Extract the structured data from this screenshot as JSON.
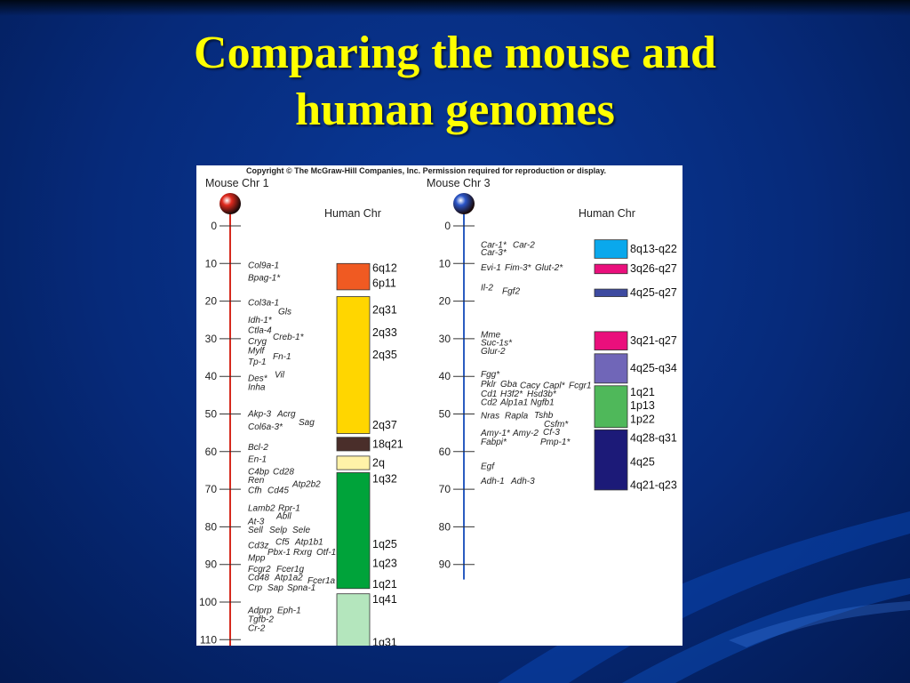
{
  "slide": {
    "title_line1": "Comparing the mouse and",
    "title_line2": "human genomes"
  },
  "figure": {
    "copyright": "Copyright © The McGraw-Hill Companies, Inc. Permission required for reproduction or display.",
    "human_chr_label": "Human Chr"
  },
  "chromosomes": [
    {
      "name": "Mouse Chr 1",
      "marker_color": "#e02a1e",
      "axis_color": "#d62a1e",
      "ticks": [
        0,
        10,
        20,
        30,
        40,
        50,
        60,
        70,
        80,
        90,
        100,
        110
      ],
      "genes": [
        {
          "text": "Col9a-1",
          "pos": 10.5,
          "dx": 0
        },
        {
          "text": "Bpag-1*",
          "pos": 13.8,
          "dx": 0
        },
        {
          "text": "Col3a-1",
          "pos": 20.5,
          "dx": 0
        },
        {
          "text": "Gls",
          "pos": 22.8,
          "dx": 34
        },
        {
          "text": "Idh-1*",
          "pos": 25.0,
          "dx": 0
        },
        {
          "text": "Ctla-4",
          "pos": 27.8,
          "dx": 0
        },
        {
          "text": "Creb-1*",
          "pos": 29.6,
          "dx": 28
        },
        {
          "text": "Cryg",
          "pos": 30.7,
          "dx": 0
        },
        {
          "text": "Mylf",
          "pos": 33.2,
          "dx": 0
        },
        {
          "text": "Fn-1",
          "pos": 34.7,
          "dx": 28
        },
        {
          "text": "Tp-1",
          "pos": 36.2,
          "dx": 0
        },
        {
          "text": "Vil",
          "pos": 39.6,
          "dx": 30
        },
        {
          "text": "Des*",
          "pos": 40.5,
          "dx": 0
        },
        {
          "text": "Inha",
          "pos": 42.9,
          "dx": 0
        },
        {
          "text": "Akp-3",
          "pos": 50.0,
          "dx": 0
        },
        {
          "text": "Acrg",
          "pos": 50.0,
          "dx": 33
        },
        {
          "text": "Sag",
          "pos": 52.2,
          "dx": 57
        },
        {
          "text": "Col6a-3*",
          "pos": 53.4,
          "dx": 0
        },
        {
          "text": "Bcl-2",
          "pos": 58.9,
          "dx": 0
        },
        {
          "text": "En-1",
          "pos": 62.0,
          "dx": 0
        },
        {
          "text": "C4bp",
          "pos": 65.4,
          "dx": 0
        },
        {
          "text": "Cd28",
          "pos": 65.4,
          "dx": 28
        },
        {
          "text": "Ren",
          "pos": 67.6,
          "dx": 0
        },
        {
          "text": "Atp2b2",
          "pos": 68.7,
          "dx": 50
        },
        {
          "text": "Cfh",
          "pos": 70.3,
          "dx": 0
        },
        {
          "text": "Cd45",
          "pos": 70.3,
          "dx": 22
        },
        {
          "text": "Lamb2",
          "pos": 75.0,
          "dx": 0
        },
        {
          "text": "Rpr-1",
          "pos": 75.0,
          "dx": 34
        },
        {
          "text": "Abll",
          "pos": 77.2,
          "dx": 32
        },
        {
          "text": "At-3",
          "pos": 78.6,
          "dx": 0
        },
        {
          "text": "Sell",
          "pos": 80.9,
          "dx": 0
        },
        {
          "text": "Selp",
          "pos": 80.9,
          "dx": 24
        },
        {
          "text": "Sele",
          "pos": 80.9,
          "dx": 50
        },
        {
          "text": "Cf5",
          "pos": 84.1,
          "dx": 31
        },
        {
          "text": "Atp1b1",
          "pos": 84.1,
          "dx": 53
        },
        {
          "text": "Cd3z",
          "pos": 85.0,
          "dx": 0
        },
        {
          "text": "Pbx-1",
          "pos": 86.8,
          "dx": 22
        },
        {
          "text": "Rxrg",
          "pos": 86.8,
          "dx": 51
        },
        {
          "text": "Otf-1",
          "pos": 86.8,
          "dx": 77
        },
        {
          "text": "Mpp",
          "pos": 88.3,
          "dx": 0
        },
        {
          "text": "Fcgr2",
          "pos": 91.3,
          "dx": 0
        },
        {
          "text": "Fcer1g",
          "pos": 91.3,
          "dx": 32
        },
        {
          "text": "Cd48",
          "pos": 93.5,
          "dx": 0
        },
        {
          "text": "Atp1a2",
          "pos": 93.5,
          "dx": 30
        },
        {
          "text": "Fcer1a",
          "pos": 94.3,
          "dx": 67
        },
        {
          "text": "Crp",
          "pos": 96.2,
          "dx": 0
        },
        {
          "text": "Sap",
          "pos": 96.2,
          "dx": 22
        },
        {
          "text": "Spna-1",
          "pos": 96.2,
          "dx": 44
        },
        {
          "text": "Adprp",
          "pos": 102.2,
          "dx": 0
        },
        {
          "text": "Eph-1",
          "pos": 102.2,
          "dx": 33
        },
        {
          "text": "Tgfb-2",
          "pos": 104.6,
          "dx": 0
        },
        {
          "text": "Cr-2",
          "pos": 107.0,
          "dx": 0
        }
      ],
      "segments": [
        {
          "start": 10.0,
          "end": 17.0,
          "color": "#f05a22",
          "labels": [
            {
              "text": "6q12",
              "pos": 11.2
            },
            {
              "text": "6p11",
              "pos": 15.2
            }
          ]
        },
        {
          "start": 18.8,
          "end": 55.2,
          "color": "#ffd600",
          "labels": [
            {
              "text": "2q31",
              "pos": 22.3
            },
            {
              "text": "2q33",
              "pos": 28.4
            },
            {
              "text": "2q35",
              "pos": 34.3
            },
            {
              "text": "2q37",
              "pos": 52.9
            }
          ]
        },
        {
          "start": 56.2,
          "end": 59.8,
          "color": "#4a2e2a",
          "labels": [
            {
              "text": "18q21",
              "pos": 58.0
            }
          ]
        },
        {
          "start": 61.2,
          "end": 64.8,
          "color": "#fff2a8",
          "labels": [
            {
              "text": "2q",
              "pos": 63.0
            }
          ]
        },
        {
          "start": 65.6,
          "end": 96.4,
          "color": "#00a33a",
          "labels": [
            {
              "text": "1q32",
              "pos": 67.3
            },
            {
              "text": "1q25",
              "pos": 84.6
            },
            {
              "text": "1q23",
              "pos": 89.7
            },
            {
              "text": "1q21",
              "pos": 95.3
            }
          ]
        },
        {
          "start": 97.8,
          "end": 112.5,
          "color": "#b4e6bd",
          "labels": [
            {
              "text": "1q41",
              "pos": 99.3
            },
            {
              "text": "1q31",
              "pos": 110.8
            }
          ]
        }
      ]
    },
    {
      "name": "Mouse Chr 3",
      "marker_color": "#2a55c8",
      "axis_color": "#2a5cc0",
      "ticks": [
        0,
        10,
        20,
        30,
        40,
        50,
        60,
        70,
        80,
        90
      ],
      "genes": [
        {
          "text": "Car-1*",
          "pos": 5.1,
          "dx": 0
        },
        {
          "text": "Car-2",
          "pos": 5.1,
          "dx": 36
        },
        {
          "text": "Car-3*",
          "pos": 7.1,
          "dx": 0
        },
        {
          "text": "Evi-1",
          "pos": 11.1,
          "dx": 0
        },
        {
          "text": "Fim-3*",
          "pos": 11.1,
          "dx": 27
        },
        {
          "text": "Glut-2*",
          "pos": 11.1,
          "dx": 61
        },
        {
          "text": "Il-2",
          "pos": 16.4,
          "dx": 0
        },
        {
          "text": "Fgf2",
          "pos": 17.4,
          "dx": 24
        },
        {
          "text": "Mme",
          "pos": 29.0,
          "dx": 0
        },
        {
          "text": "Suc-1s*",
          "pos": 31.1,
          "dx": 0
        },
        {
          "text": "Glur-2",
          "pos": 33.3,
          "dx": 0
        },
        {
          "text": "Fgg*",
          "pos": 39.5,
          "dx": 0
        },
        {
          "text": "Pklr",
          "pos": 42.1,
          "dx": 0
        },
        {
          "text": "Gba",
          "pos": 42.1,
          "dx": 22
        },
        {
          "text": "Cacy",
          "pos": 42.4,
          "dx": 44
        },
        {
          "text": "Capl*",
          "pos": 42.4,
          "dx": 70
        },
        {
          "text": "Fcgr1",
          "pos": 42.4,
          "dx": 99
        },
        {
          "text": "Cd1",
          "pos": 44.7,
          "dx": 0
        },
        {
          "text": "H3f2*",
          "pos": 44.7,
          "dx": 22
        },
        {
          "text": "Hsd3b*",
          "pos": 44.7,
          "dx": 52
        },
        {
          "text": "Cd2",
          "pos": 46.9,
          "dx": 0
        },
        {
          "text": "Alp1a1",
          "pos": 46.9,
          "dx": 22
        },
        {
          "text": "Ngfb1",
          "pos": 46.9,
          "dx": 56
        },
        {
          "text": "Nras",
          "pos": 50.5,
          "dx": 0
        },
        {
          "text": "Rapla",
          "pos": 50.5,
          "dx": 27
        },
        {
          "text": "Tshb",
          "pos": 50.3,
          "dx": 60
        },
        {
          "text": "Csfm*",
          "pos": 52.7,
          "dx": 71
        },
        {
          "text": "Amy-1*",
          "pos": 55.1,
          "dx": 0
        },
        {
          "text": "Amy-2",
          "pos": 55.1,
          "dx": 36
        },
        {
          "text": "Cf-3",
          "pos": 54.9,
          "dx": 70
        },
        {
          "text": "Fabpi*",
          "pos": 57.5,
          "dx": 0
        },
        {
          "text": "Pmp-1*",
          "pos": 57.5,
          "dx": 67
        },
        {
          "text": "Egf",
          "pos": 63.9,
          "dx": 0
        },
        {
          "text": "Adh-1",
          "pos": 67.9,
          "dx": 0
        },
        {
          "text": "Adh-3",
          "pos": 67.9,
          "dx": 34
        }
      ],
      "segments": [
        {
          "start": 3.7,
          "end": 8.6,
          "color": "#0aa8ec",
          "labels": [
            {
              "text": "8q13-q22",
              "pos": 6.2
            }
          ]
        },
        {
          "start": 10.2,
          "end": 12.7,
          "color": "#ea0f7c",
          "labels": [
            {
              "text": "3q26-q27",
              "pos": 11.3
            }
          ]
        },
        {
          "start": 16.8,
          "end": 18.8,
          "color": "#3d4aa0",
          "labels": [
            {
              "text": "4q25-q27",
              "pos": 17.7
            }
          ]
        },
        {
          "start": 28.1,
          "end": 33.0,
          "color": "#ea0f7c",
          "labels": [
            {
              "text": "3q21-q27",
              "pos": 30.5
            }
          ]
        },
        {
          "start": 34.0,
          "end": 41.8,
          "color": "#7066b8",
          "labels": [
            {
              "text": "4q25-q34",
              "pos": 37.8
            }
          ]
        },
        {
          "start": 42.5,
          "end": 53.6,
          "color": "#4fb85a",
          "labels": [
            {
              "text": "1q21",
              "pos": 44.2
            },
            {
              "text": "1p13",
              "pos": 47.7
            },
            {
              "text": "1p22",
              "pos": 51.4
            }
          ]
        },
        {
          "start": 54.2,
          "end": 70.2,
          "color": "#1c1a78",
          "labels": [
            {
              "text": "4q28-q31",
              "pos": 56.4
            },
            {
              "text": "4q25",
              "pos": 62.8
            },
            {
              "text": "4q21-q23",
              "pos": 68.9
            }
          ]
        }
      ]
    }
  ],
  "colors": {
    "title": "#ffff00",
    "background": "#062a7a"
  }
}
